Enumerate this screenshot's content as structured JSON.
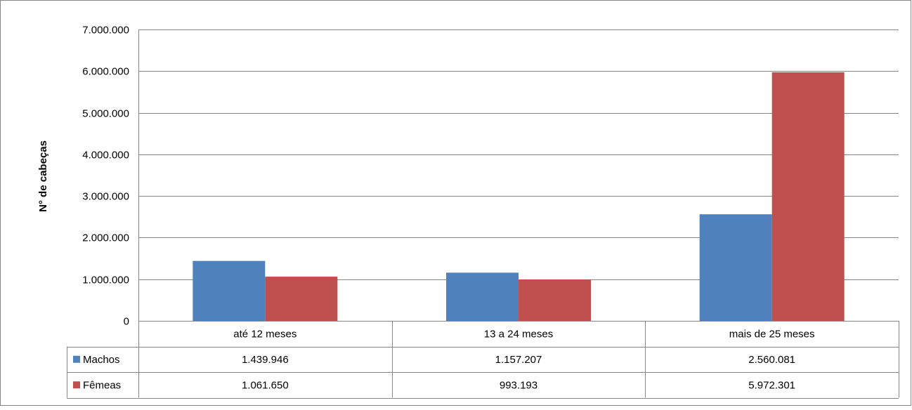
{
  "chart_data": {
    "type": "bar",
    "ylabel": "N° de cabeças",
    "ylim": [
      0,
      7000000
    ],
    "yticks": [
      0,
      1000000,
      2000000,
      3000000,
      4000000,
      5000000,
      6000000,
      7000000
    ],
    "ytick_labels": [
      "0",
      "1.000.000",
      "2.000.000",
      "3.000.000",
      "4.000.000",
      "5.000.000",
      "6.000.000",
      "7.000.000"
    ],
    "grid": true,
    "legend": "data-table",
    "categories": [
      "até 12 meses",
      "13 a 24 meses",
      "mais de 25 meses"
    ],
    "series": [
      {
        "name": "Machos",
        "color": "#4f81bd",
        "values": [
          1439946,
          1157207,
          2560081
        ],
        "value_labels": [
          "1.439.946",
          "1.157.207",
          "2.560.081"
        ]
      },
      {
        "name": "Fêmeas",
        "color": "#c0504d",
        "values": [
          1061650,
          993193,
          5972301
        ],
        "value_labels": [
          "1.061.650",
          "993.193",
          "5.972.301"
        ]
      }
    ]
  }
}
